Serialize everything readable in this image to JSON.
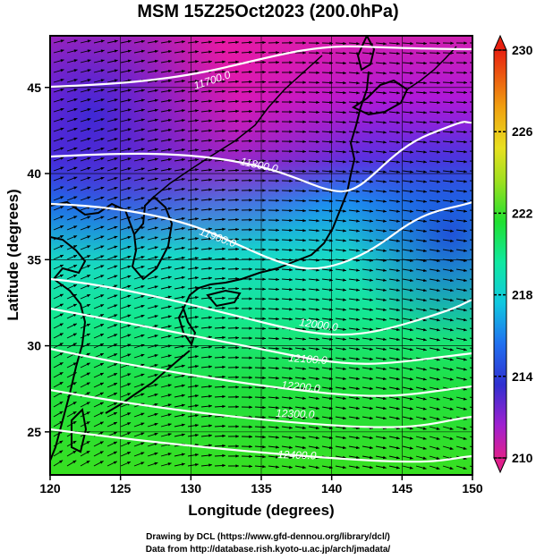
{
  "title": "MSM 15Z25Oct2023 (200.0hPa)",
  "map": {
    "lon_range": [
      120,
      150
    ],
    "lat_range": [
      22.5,
      48
    ],
    "x_ticks": [
      "120",
      "125",
      "130",
      "135",
      "140",
      "145",
      "150"
    ],
    "y_ticks": [
      "25",
      "30",
      "35",
      "40",
      "45"
    ],
    "xlabel": "Longitude (degrees)",
    "ylabel": "Latitude  (degrees)",
    "contour_labels": [
      "11700.0",
      "11800.0",
      "11900.0",
      "12000.0",
      "12100.0",
      "12200.0",
      "12300.0",
      "12400.0"
    ],
    "contour_color": "#ffffff",
    "vector_color": "#000000"
  },
  "colorbar": {
    "range": [
      210,
      230
    ],
    "tick_labels": [
      "230",
      "226",
      "222",
      "218",
      "214",
      "210"
    ],
    "colors": [
      "#e0208c",
      "#a020d0",
      "#3030d0",
      "#2070f0",
      "#10c8e0",
      "#10e8a0",
      "#20e030",
      "#a0e020",
      "#e8e020",
      "#f0a010",
      "#e82010"
    ]
  },
  "credits": {
    "line1": "Drawing by DCL (https://www.gfd-dennou.org/library/dcl/)",
    "line2": "Data from http://database.rish.kyoto-u.ac.jp/arch/jmadata/"
  }
}
